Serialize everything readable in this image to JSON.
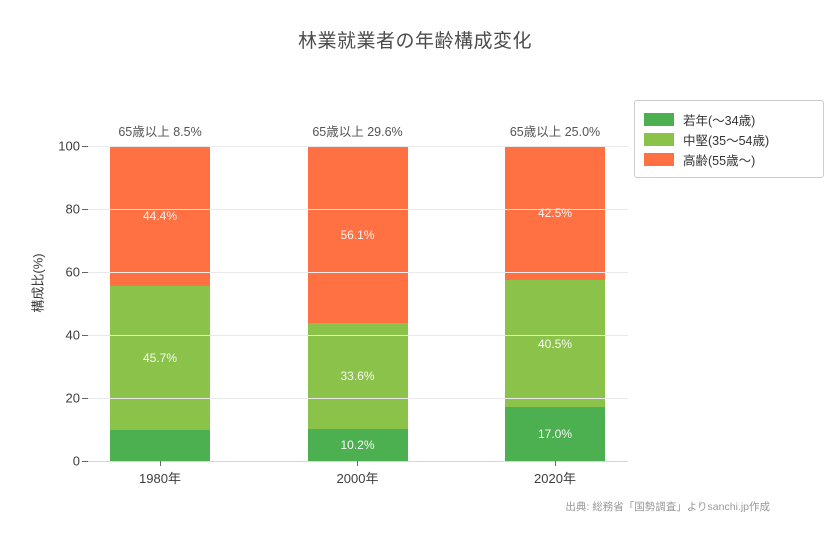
{
  "header": {
    "title": "林業就業者の年齢構成変化"
  },
  "footer": {
    "source": "出典: 総務省「国勢調査」よりsanchi.jp作成"
  },
  "colors": {
    "young": "#4caf50",
    "middle": "#8bc34a",
    "old": "#ff7043",
    "grid": "#e9e9e9",
    "axis_line": "#d6d6d6",
    "tick_text": "#3d3d3d",
    "annotation_text": "#555555",
    "bar_label_text": "#f7f7f7",
    "source_text": "#999999",
    "legend_border": "#cccccc"
  },
  "chart_data": {
    "type": "bar",
    "stacked": true,
    "title": "林業就業者の年齢構成変化",
    "ylabel": "構成比(%)",
    "ylim": [
      0,
      100
    ],
    "yticks": [
      0,
      20,
      40,
      60,
      80,
      100
    ],
    "grid": true,
    "legend_position": "outside-top-right",
    "categories": [
      "1980年",
      "2000年",
      "2020年"
    ],
    "series": [
      {
        "name": "若年(〜34歳)",
        "color": "#4caf50",
        "values": [
          9.9,
          10.2,
          17.0
        ],
        "bar_labels": [
          "",
          "10.2%",
          "17.0%"
        ]
      },
      {
        "name": "中堅(35〜54歳)",
        "color": "#8bc34a",
        "values": [
          45.7,
          33.6,
          40.5
        ],
        "bar_labels": [
          "45.7%",
          "33.6%",
          "40.5%"
        ]
      },
      {
        "name": "高齢(55歳〜)",
        "color": "#ff7043",
        "values": [
          44.4,
          56.1,
          42.5
        ],
        "bar_labels": [
          "44.4%",
          "56.1%",
          "42.5%"
        ]
      }
    ],
    "annotations": [
      "65歳以上 8.5%",
      "65歳以上 29.6%",
      "65歳以上 25.0%"
    ]
  }
}
